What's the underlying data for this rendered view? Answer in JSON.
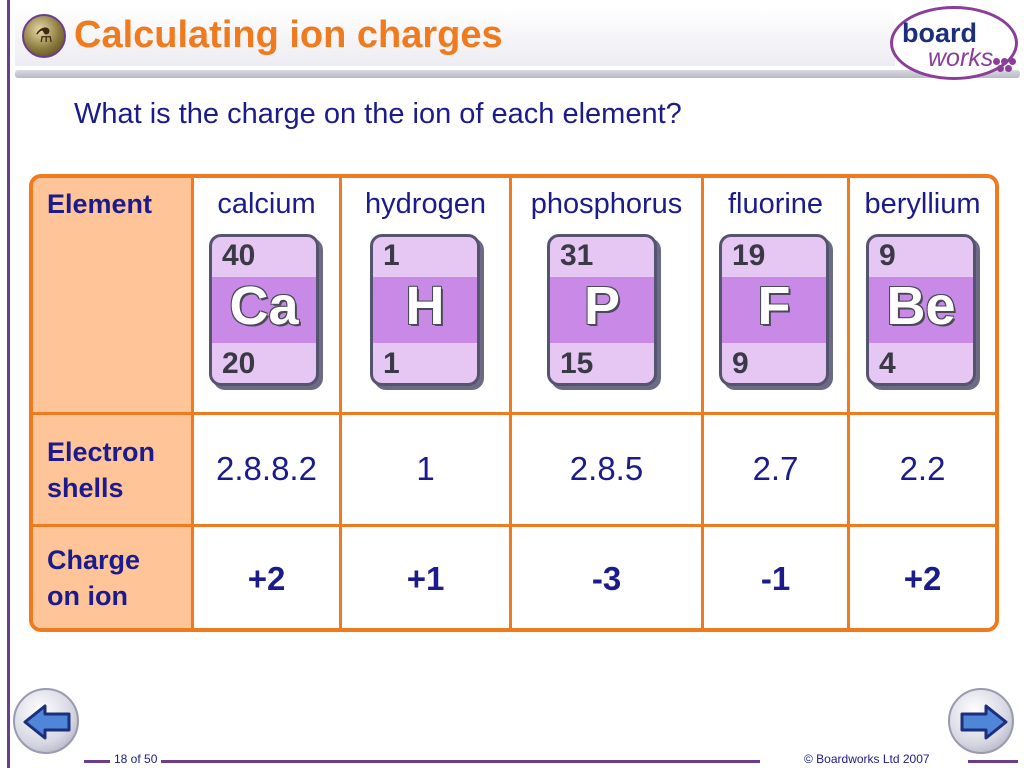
{
  "title": "Calculating ion charges",
  "logo": {
    "board": "board",
    "works": "works"
  },
  "question": "What is the charge on the ion of each element?",
  "table": {
    "row_headers": {
      "element": "Element",
      "electron_shells_1": "Electron",
      "electron_shells_2": "shells",
      "charge_1": "Charge",
      "charge_2": "on ion"
    },
    "elements": [
      {
        "name": "calcium",
        "mass": "40",
        "symbol": "Ca",
        "number": "20",
        "shells": "2.8.8.2",
        "charge": "+2"
      },
      {
        "name": "hydrogen",
        "mass": "1",
        "symbol": "H",
        "number": "1",
        "shells": "1",
        "charge": "+1"
      },
      {
        "name": "phosphorus",
        "mass": "31",
        "symbol": "P",
        "number": "15",
        "shells": "2.8.5",
        "charge": "-3"
      },
      {
        "name": "fluorine",
        "mass": "19",
        "symbol": "F",
        "number": "9",
        "shells": "2.7",
        "charge": "-1"
      },
      {
        "name": "beryllium",
        "mass": "9",
        "symbol": "Be",
        "number": "4",
        "shells": "2.2",
        "charge": "+2"
      }
    ]
  },
  "footer": {
    "page": "18 of 50",
    "copyright": "© Boardworks Ltd 2007",
    "prev_icon": "left-arrow-icon",
    "next_icon": "right-arrow-icon"
  },
  "colors": {
    "accent": "#f07a1e",
    "text": "#1b1b8c",
    "frame": "#6b3e8c",
    "tile": "#c88ae6"
  }
}
